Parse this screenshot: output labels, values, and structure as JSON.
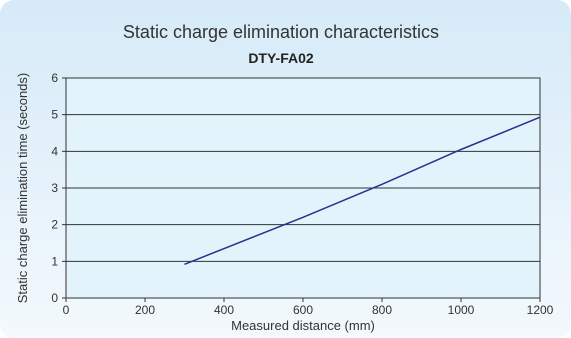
{
  "chart_data": {
    "type": "line",
    "title": "Static charge elimination characteristics",
    "subtitle": "DTY-FA02",
    "xlabel": "Measured distance (mm)",
    "ylabel": "Static charge elimination time (seconds)",
    "xlim": [
      0,
      1200
    ],
    "ylim": [
      0,
      6
    ],
    "xticks": [
      "0",
      "200",
      "400",
      "600",
      "800",
      "1000",
      "1200"
    ],
    "yticks": [
      "0",
      "1",
      "2",
      "3",
      "4",
      "5",
      "6"
    ],
    "grid": "horizontal",
    "series": [
      {
        "x": [
          300,
          600,
          800,
          1000,
          1200
        ],
        "y": [
          0.92,
          2.2,
          3.1,
          4.05,
          4.93
        ],
        "color": "#2b2f8f"
      }
    ]
  },
  "colors": {
    "plot_background": "#e2f3fb",
    "line": "#2b2f8f",
    "grid": "#333333"
  }
}
